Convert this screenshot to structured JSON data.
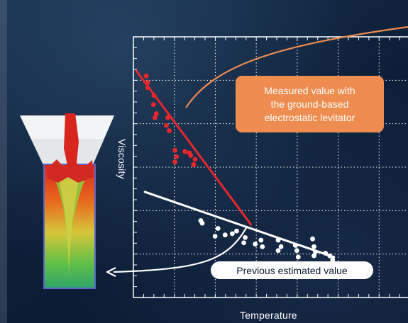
{
  "chart_data": {
    "type": "scatter",
    "xlabel": "Temperature",
    "ylabel": "Viscosity",
    "grid": true,
    "xlim": [
      0,
      10
    ],
    "ylim": [
      0,
      10
    ],
    "series": [
      {
        "color": "#e8262b",
        "points": [
          [
            0.45,
            8.5
          ],
          [
            0.5,
            8.25
          ],
          [
            0.5,
            8.05
          ],
          [
            0.72,
            7.75
          ],
          [
            0.7,
            7.4
          ],
          [
            0.8,
            7.05
          ],
          [
            0.75,
            6.9
          ],
          [
            1.2,
            6.9
          ],
          [
            1.15,
            6.6
          ],
          [
            1.25,
            6.4
          ],
          [
            1.45,
            5.65
          ],
          [
            1.5,
            5.4
          ],
          [
            1.45,
            5.2
          ],
          [
            1.8,
            5.6
          ],
          [
            1.95,
            5.55
          ],
          [
            2.0,
            5.45
          ],
          [
            2.15,
            5.3
          ],
          [
            2.1,
            5.1
          ]
        ],
        "fit": [
          [
            0.1,
            8.7
          ],
          [
            4.1,
            2.8
          ]
        ]
      },
      {
        "color": "#ffffff",
        "points": [
          [
            2.35,
            2.95
          ],
          [
            2.4,
            2.85
          ],
          [
            2.95,
            2.65
          ],
          [
            2.85,
            2.35
          ],
          [
            3.2,
            2.4
          ],
          [
            3.45,
            2.45
          ],
          [
            3.6,
            2.55
          ],
          [
            3.85,
            2.1
          ],
          [
            3.9,
            2.3
          ],
          [
            4.25,
            2.05
          ],
          [
            4.45,
            2.2
          ],
          [
            4.5,
            1.95
          ],
          [
            5.05,
            2.2
          ],
          [
            5.15,
            1.95
          ],
          [
            5.05,
            1.8
          ],
          [
            5.65,
            2.0
          ],
          [
            5.7,
            1.8
          ],
          [
            5.75,
            1.55
          ],
          [
            6.25,
            2.25
          ],
          [
            6.3,
            1.95
          ],
          [
            6.35,
            1.75
          ],
          [
            6.3,
            1.6
          ],
          [
            6.7,
            1.7
          ],
          [
            6.85,
            1.6
          ],
          [
            6.95,
            1.45
          ]
        ],
        "fit": [
          [
            0.4,
            4.05
          ],
          [
            7.0,
            1.55
          ]
        ]
      }
    ],
    "annotations": [
      {
        "text_lines": [
          "Measured value with",
          "the ground-based",
          "electrostatic levitator"
        ],
        "color": "#ef8c4f"
      },
      {
        "text": "Previous estimated value",
        "color": "#ffffff"
      }
    ]
  }
}
